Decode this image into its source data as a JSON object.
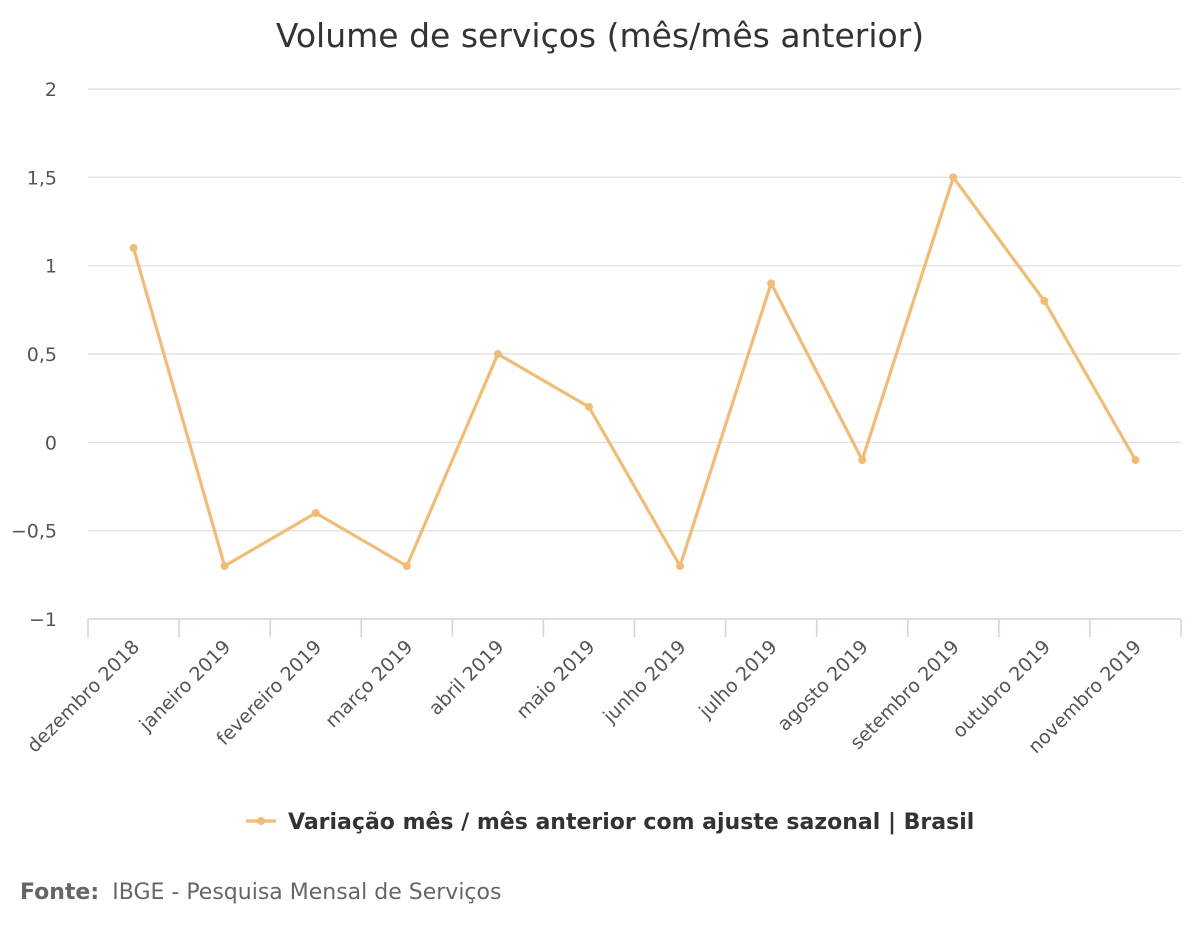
{
  "chart_data": {
    "type": "line",
    "title": "Volume de serviços (mês/mês anterior)",
    "categories": [
      "dezembro 2018",
      "janeiro 2019",
      "fevereiro 2019",
      "março 2019",
      "abril 2019",
      "maio 2019",
      "junho 2019",
      "julho 2019",
      "agosto 2019",
      "setembro 2019",
      "outubro 2019",
      "novembro 2019"
    ],
    "series": [
      {
        "name": "Variação mês / mês anterior com ajuste sazonal | Brasil",
        "color": "#f0bc78",
        "values": [
          1.1,
          -0.7,
          -0.4,
          -0.7,
          0.5,
          0.2,
          -0.7,
          0.9,
          -0.1,
          1.5,
          0.8,
          -0.1
        ]
      }
    ],
    "y_ticks": [
      2,
      1.5,
      1,
      0.5,
      0,
      -0.5,
      -1
    ],
    "y_tick_labels": [
      "2",
      "1,5",
      "1",
      "0,5",
      "0",
      "−0,5",
      "−1"
    ],
    "ylim": [
      -1,
      2
    ],
    "grid": true,
    "legend_position": "bottom-center"
  },
  "source": {
    "label": "Fonte:",
    "text": "IBGE - Pesquisa Mensal de Serviços"
  }
}
